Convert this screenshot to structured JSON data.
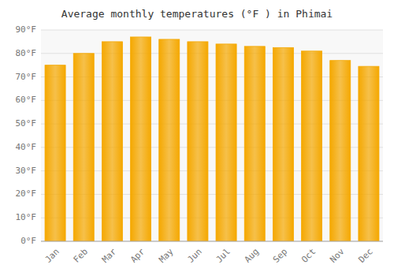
{
  "chart_data": {
    "type": "bar",
    "title": "Average monthly temperatures (°F ) in Phimai",
    "categories": [
      "Jan",
      "Feb",
      "Mar",
      "Apr",
      "May",
      "Jun",
      "Jul",
      "Aug",
      "Sep",
      "Oct",
      "Nov",
      "Dec"
    ],
    "values": [
      75,
      80,
      85,
      87,
      86,
      85,
      84,
      83,
      82.5,
      81,
      77,
      74.5
    ],
    "color": "#F5A800",
    "ylim": [
      0,
      90
    ],
    "yticks": [
      {
        "value": 0,
        "label": "0°F"
      },
      {
        "value": 10,
        "label": "10°F"
      },
      {
        "value": 20,
        "label": "20°F"
      },
      {
        "value": 30,
        "label": "30°F"
      },
      {
        "value": 40,
        "label": "40°F"
      },
      {
        "value": 50,
        "label": "50°F"
      },
      {
        "value": 60,
        "label": "60°F"
      },
      {
        "value": 70,
        "label": "70°F"
      },
      {
        "value": 80,
        "label": "80°F"
      },
      {
        "value": 90,
        "label": "90°F"
      }
    ],
    "grid": true
  }
}
